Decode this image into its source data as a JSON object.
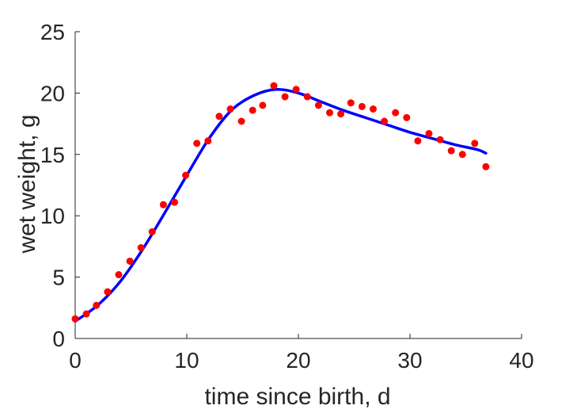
{
  "chart_data": {
    "type": "scatter",
    "title": "",
    "xlabel": "time since birth, d",
    "ylabel": "wet weight, g",
    "xlim": [
      0,
      40
    ],
    "ylim": [
      0,
      25
    ],
    "x_ticks": [
      0,
      10,
      20,
      30,
      40
    ],
    "y_ticks": [
      0,
      5,
      10,
      15,
      20,
      25
    ],
    "x_tick_labels": [
      "0",
      "10",
      "20",
      "30",
      "40"
    ],
    "y_tick_labels": [
      "0",
      "5",
      "10",
      "15",
      "20",
      "25"
    ],
    "grid": false,
    "legend": "none",
    "series": [
      {
        "kind": "scatter",
        "color": "#ff0000",
        "points": [
          [
            0,
            1.6
          ],
          [
            1,
            2.0
          ],
          [
            1.9,
            2.7
          ],
          [
            2.9,
            3.8
          ],
          [
            3.9,
            5.2
          ],
          [
            4.9,
            6.3
          ],
          [
            5.9,
            7.4
          ],
          [
            6.9,
            8.7
          ],
          [
            7.9,
            10.9
          ],
          [
            8.9,
            11.1
          ],
          [
            9.9,
            13.3
          ],
          [
            10.9,
            15.9
          ],
          [
            11.9,
            16.1
          ],
          [
            12.9,
            18.1
          ],
          [
            13.9,
            18.7
          ],
          [
            14.9,
            17.7
          ],
          [
            15.9,
            18.6
          ],
          [
            16.8,
            19.0
          ],
          [
            17.8,
            20.6
          ],
          [
            18.8,
            19.7
          ],
          [
            19.8,
            20.3
          ],
          [
            20.8,
            19.7
          ],
          [
            21.8,
            19.0
          ],
          [
            22.8,
            18.4
          ],
          [
            23.8,
            18.3
          ],
          [
            24.7,
            19.2
          ],
          [
            25.7,
            18.9
          ],
          [
            26.7,
            18.7
          ],
          [
            27.7,
            17.7
          ],
          [
            28.7,
            18.4
          ],
          [
            29.7,
            18.0
          ],
          [
            30.7,
            16.1
          ],
          [
            31.7,
            16.7
          ],
          [
            32.7,
            16.2
          ],
          [
            33.7,
            15.3
          ],
          [
            34.7,
            15.0
          ],
          [
            35.8,
            15.9
          ],
          [
            36.8,
            14.0
          ]
        ]
      },
      {
        "kind": "line",
        "color": "#0000ff",
        "points": [
          [
            0,
            1.4
          ],
          [
            2,
            2.7
          ],
          [
            4,
            4.6
          ],
          [
            6,
            7.2
          ],
          [
            8,
            10.2
          ],
          [
            10,
            13.3
          ],
          [
            12,
            16.3
          ],
          [
            14,
            18.6
          ],
          [
            16,
            19.8
          ],
          [
            18,
            20.3
          ],
          [
            20,
            20.0
          ],
          [
            22,
            19.3
          ],
          [
            24,
            18.6
          ],
          [
            26,
            18.0
          ],
          [
            28,
            17.4
          ],
          [
            30,
            16.8
          ],
          [
            32,
            16.3
          ],
          [
            34,
            15.8
          ],
          [
            36,
            15.4
          ],
          [
            36.8,
            15.1
          ]
        ]
      }
    ]
  }
}
